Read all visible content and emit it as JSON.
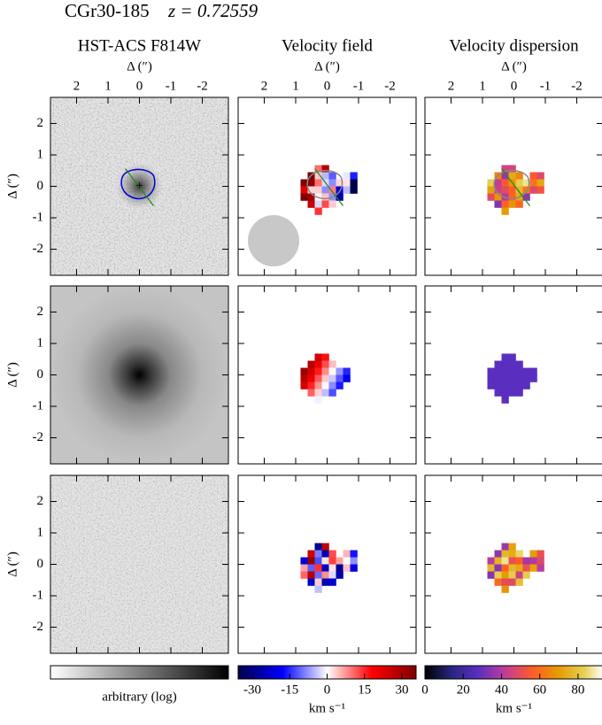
{
  "chart_data": {
    "type": "image_grid",
    "title": "CGr30-185",
    "subtitle": "z = 0.72559",
    "panel_titles": [
      "HST-ACS F814W",
      "Velocity field",
      "Velocity dispersion"
    ],
    "xlabel": "Δ   (″)",
    "ylabel": "Δ   (″)",
    "xlim": [
      2.83,
      -2.83
    ],
    "ylim": [
      -2.83,
      2.83
    ],
    "xticks": [
      2,
      1,
      0,
      -1,
      -2
    ],
    "yticks": [
      -2,
      -1,
      0,
      1,
      2
    ],
    "colorbars": [
      {
        "label": "arbitrary (log)",
        "ticks": []
      },
      {
        "label": "km s⁻¹",
        "lim": [
          -35.7,
          35.7
        ],
        "ticks": [
          -30,
          -15,
          0,
          15,
          30
        ]
      },
      {
        "label": "km s⁻¹",
        "lim": [
          0,
          93
        ],
        "ticks": [
          0,
          20,
          40,
          60,
          80
        ]
      }
    ]
  }
}
